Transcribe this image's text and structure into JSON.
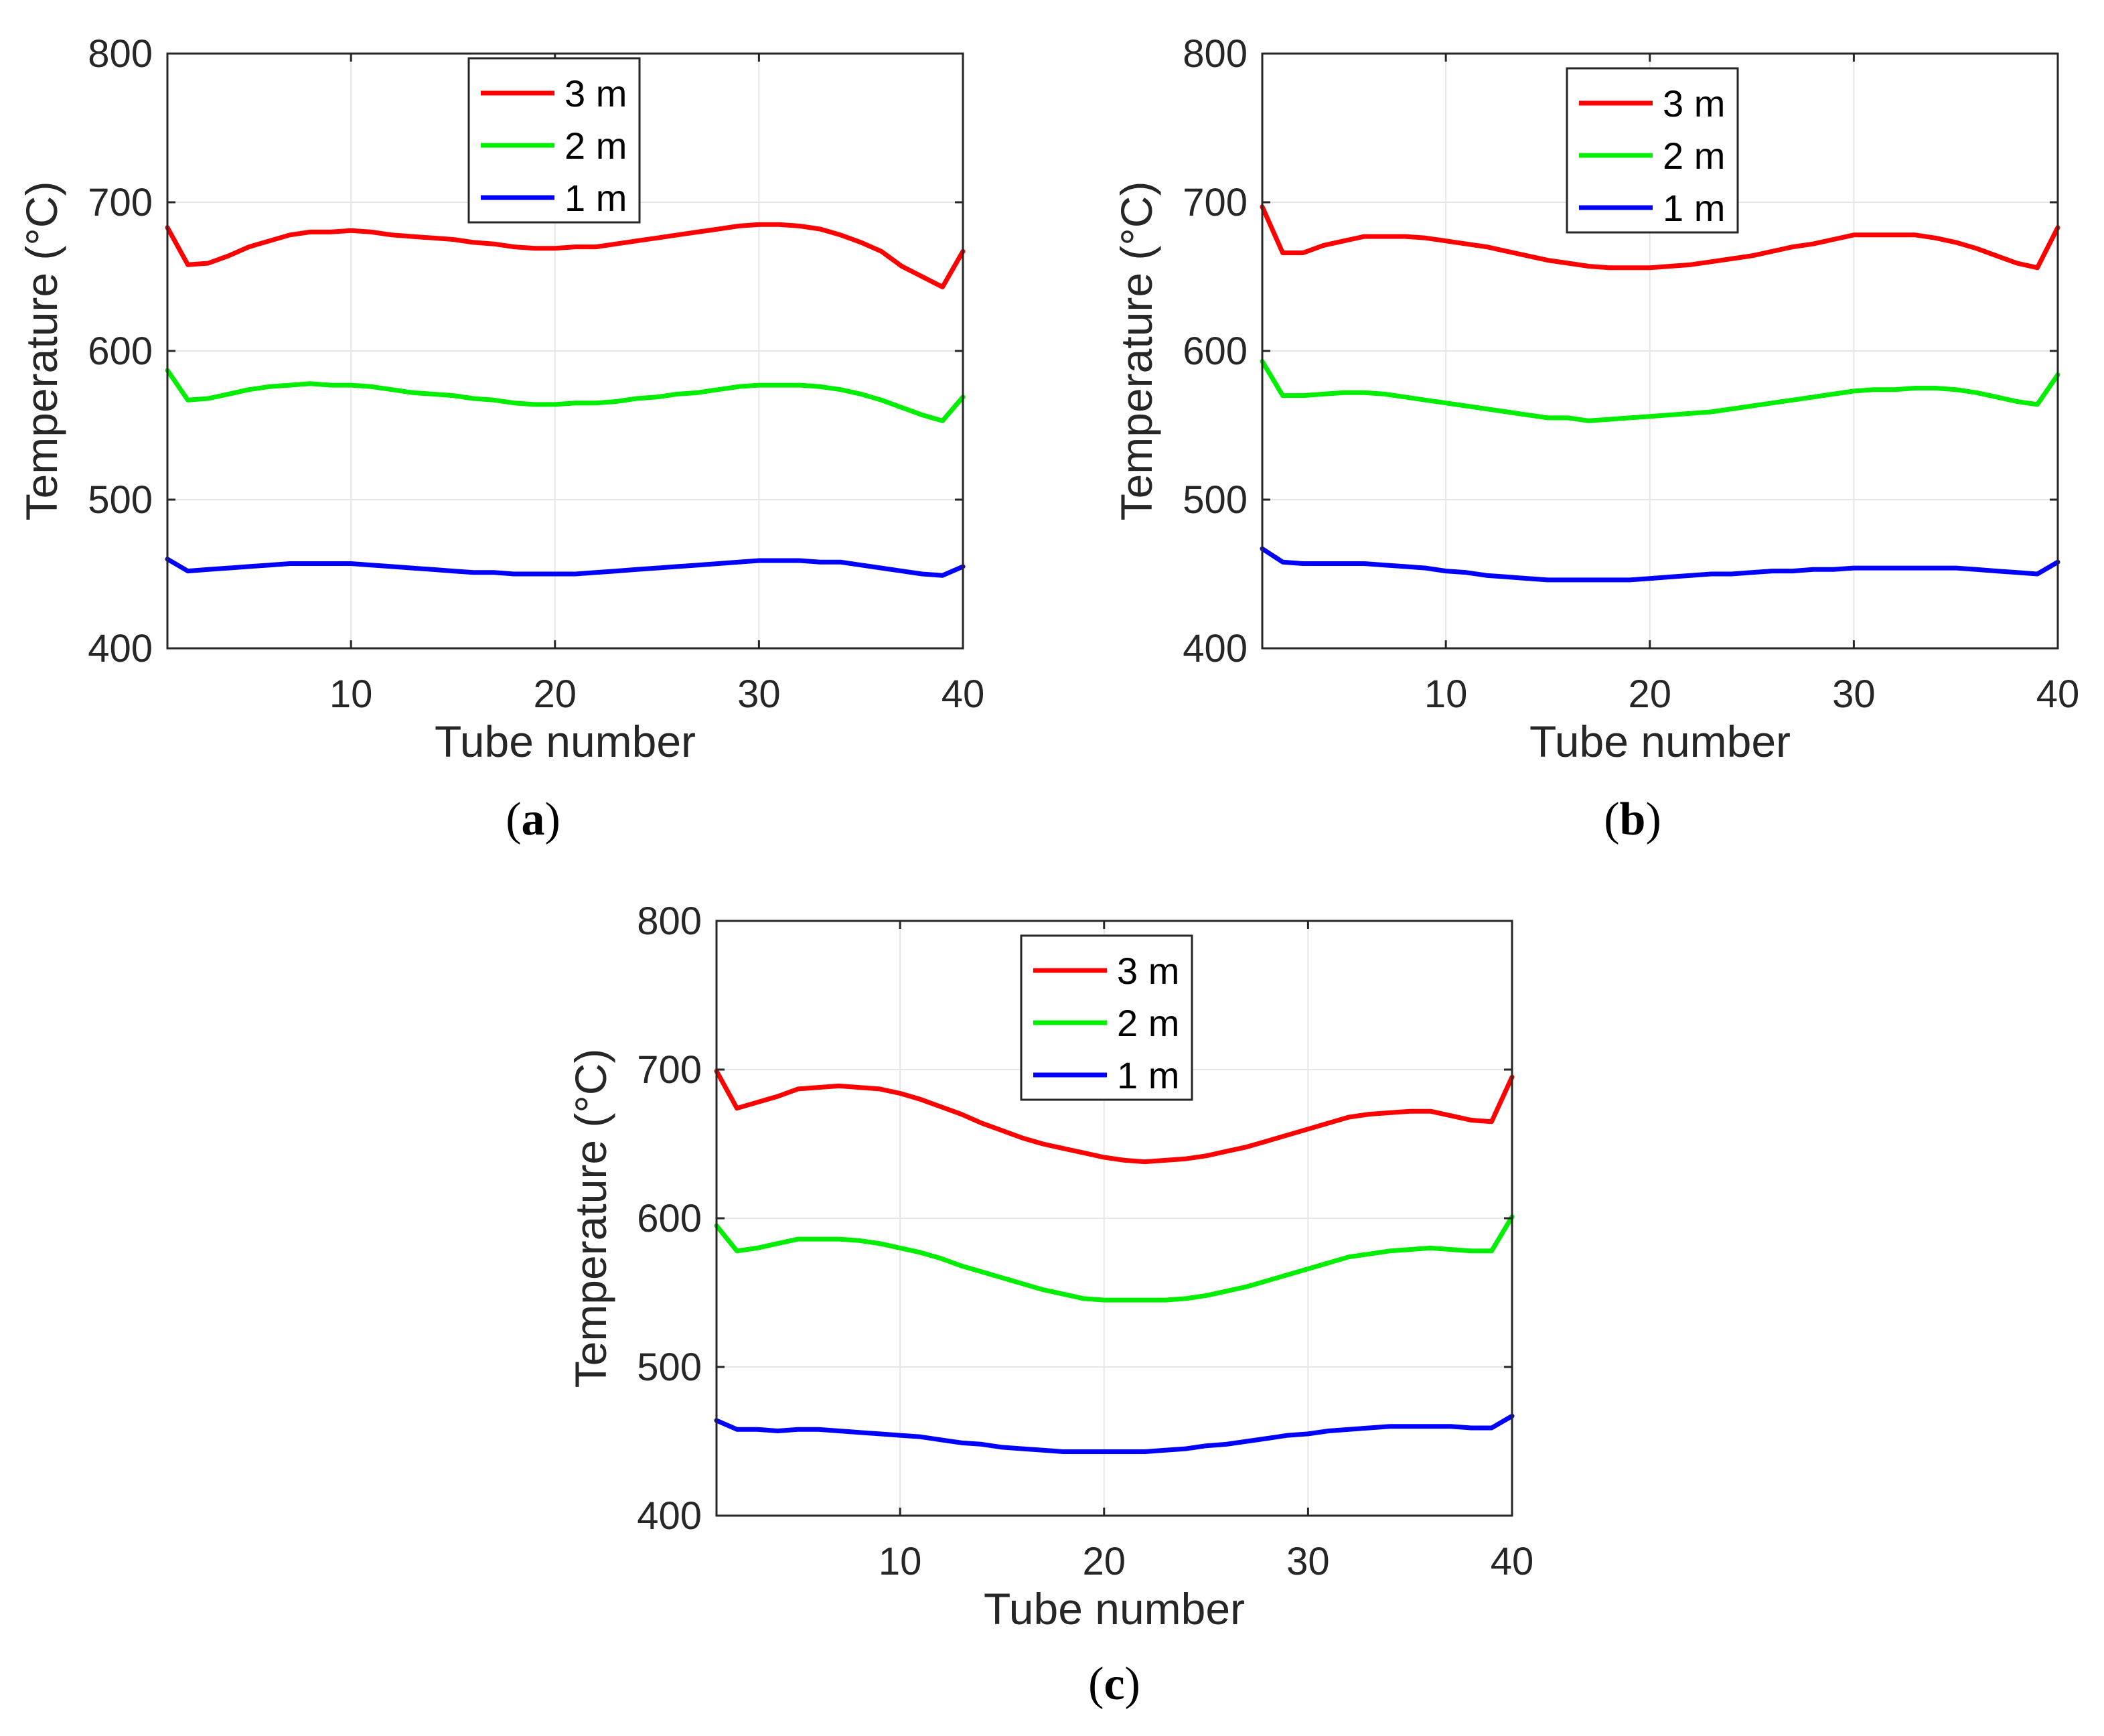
{
  "colors": {
    "3 m": "#ff0000",
    "2 m": "#00ee00",
    "1 m": "#0000ff",
    "axis": "#262626",
    "grid": "#e6e6e6",
    "background": "#ffffff"
  },
  "chart_data": [
    {
      "type": "line",
      "label": "a",
      "xlabel": "Tube number",
      "ylabel": "Temperature (°C)",
      "xlim": [
        1,
        40
      ],
      "ylim": [
        400,
        800
      ],
      "xticks": [
        10,
        20,
        30,
        40
      ],
      "yticks": [
        400,
        500,
        600,
        700,
        800
      ],
      "grid": true,
      "legend_position": "top-center",
      "x": [
        1,
        2,
        3,
        4,
        5,
        6,
        7,
        8,
        9,
        10,
        11,
        12,
        13,
        14,
        15,
        16,
        17,
        18,
        19,
        20,
        21,
        22,
        23,
        24,
        25,
        26,
        27,
        28,
        29,
        30,
        31,
        32,
        33,
        34,
        35,
        36,
        37,
        38,
        39,
        40
      ],
      "series": [
        {
          "name": "3 m",
          "values": [
            683,
            658,
            659,
            664,
            670,
            674,
            678,
            680,
            680,
            681,
            680,
            678,
            677,
            676,
            675,
            673,
            672,
            670,
            669,
            669,
            670,
            670,
            672,
            674,
            676,
            678,
            680,
            682,
            684,
            685,
            685,
            684,
            682,
            678,
            673,
            667,
            657,
            650,
            643,
            667
          ]
        },
        {
          "name": "2 m",
          "values": [
            587,
            567,
            568,
            571,
            574,
            576,
            577,
            578,
            577,
            577,
            576,
            574,
            572,
            571,
            570,
            568,
            567,
            565,
            564,
            564,
            565,
            565,
            566,
            568,
            569,
            571,
            572,
            574,
            576,
            577,
            577,
            577,
            576,
            574,
            571,
            567,
            562,
            557,
            553,
            569
          ]
        },
        {
          "name": "1 m",
          "values": [
            460,
            452,
            453,
            454,
            455,
            456,
            457,
            457,
            457,
            457,
            456,
            455,
            454,
            453,
            452,
            451,
            451,
            450,
            450,
            450,
            450,
            451,
            452,
            453,
            454,
            455,
            456,
            457,
            458,
            459,
            459,
            459,
            458,
            458,
            456,
            454,
            452,
            450,
            449,
            455
          ]
        }
      ]
    },
    {
      "type": "line",
      "label": "b",
      "xlabel": "Tube number",
      "ylabel": "Temperature (°C)",
      "xlim": [
        1,
        40
      ],
      "ylim": [
        400,
        800
      ],
      "xticks": [
        10,
        20,
        30,
        40
      ],
      "yticks": [
        400,
        500,
        600,
        700,
        800
      ],
      "grid": true,
      "legend_position": "top-center",
      "x": [
        1,
        2,
        3,
        4,
        5,
        6,
        7,
        8,
        9,
        10,
        11,
        12,
        13,
        14,
        15,
        16,
        17,
        18,
        19,
        20,
        21,
        22,
        23,
        24,
        25,
        26,
        27,
        28,
        29,
        30,
        31,
        32,
        33,
        34,
        35,
        36,
        37,
        38,
        39,
        40
      ],
      "series": [
        {
          "name": "3 m",
          "values": [
            697,
            666,
            666,
            671,
            674,
            677,
            677,
            677,
            676,
            674,
            672,
            670,
            667,
            664,
            661,
            659,
            657,
            656,
            656,
            656,
            657,
            658,
            660,
            662,
            664,
            667,
            670,
            672,
            675,
            678,
            678,
            678,
            678,
            676,
            673,
            669,
            664,
            659,
            656,
            683
          ]
        },
        {
          "name": "2 m",
          "values": [
            593,
            570,
            570,
            571,
            572,
            572,
            571,
            569,
            567,
            565,
            563,
            561,
            559,
            557,
            555,
            555,
            553,
            554,
            555,
            556,
            557,
            558,
            559,
            561,
            563,
            565,
            567,
            569,
            571,
            573,
            574,
            574,
            575,
            575,
            574,
            572,
            569,
            566,
            564,
            584
          ]
        },
        {
          "name": "1 m",
          "values": [
            467,
            458,
            457,
            457,
            457,
            457,
            456,
            455,
            454,
            452,
            451,
            449,
            448,
            447,
            446,
            446,
            446,
            446,
            446,
            447,
            448,
            449,
            450,
            450,
            451,
            452,
            452,
            453,
            453,
            454,
            454,
            454,
            454,
            454,
            454,
            453,
            452,
            451,
            450,
            458
          ]
        }
      ]
    },
    {
      "type": "line",
      "label": "c",
      "xlabel": "Tube number",
      "ylabel": "Temperature (°C)",
      "xlim": [
        1,
        40
      ],
      "ylim": [
        400,
        800
      ],
      "xticks": [
        10,
        20,
        30,
        40
      ],
      "yticks": [
        400,
        500,
        600,
        700,
        800
      ],
      "grid": true,
      "legend_position": "top-center",
      "x": [
        1,
        2,
        3,
        4,
        5,
        6,
        7,
        8,
        9,
        10,
        11,
        12,
        13,
        14,
        15,
        16,
        17,
        18,
        19,
        20,
        21,
        22,
        23,
        24,
        25,
        26,
        27,
        28,
        29,
        30,
        31,
        32,
        33,
        34,
        35,
        36,
        37,
        38,
        39,
        40
      ],
      "series": [
        {
          "name": "3 m",
          "values": [
            699,
            674,
            678,
            682,
            687,
            688,
            689,
            688,
            687,
            684,
            680,
            675,
            670,
            664,
            659,
            654,
            650,
            647,
            644,
            641,
            639,
            638,
            639,
            640,
            642,
            645,
            648,
            652,
            656,
            660,
            664,
            668,
            670,
            671,
            672,
            672,
            669,
            666,
            665,
            695
          ]
        },
        {
          "name": "2 m",
          "values": [
            595,
            578,
            580,
            583,
            586,
            586,
            586,
            585,
            583,
            580,
            577,
            573,
            568,
            564,
            560,
            556,
            552,
            549,
            546,
            545,
            545,
            545,
            545,
            546,
            548,
            551,
            554,
            558,
            562,
            566,
            570,
            574,
            576,
            578,
            579,
            580,
            579,
            578,
            578,
            601
          ]
        },
        {
          "name": "1 m",
          "values": [
            464,
            458,
            458,
            457,
            458,
            458,
            457,
            456,
            455,
            454,
            453,
            451,
            449,
            448,
            446,
            445,
            444,
            443,
            443,
            443,
            443,
            443,
            444,
            445,
            447,
            448,
            450,
            452,
            454,
            455,
            457,
            458,
            459,
            460,
            460,
            460,
            460,
            459,
            459,
            467
          ]
        }
      ]
    }
  ]
}
